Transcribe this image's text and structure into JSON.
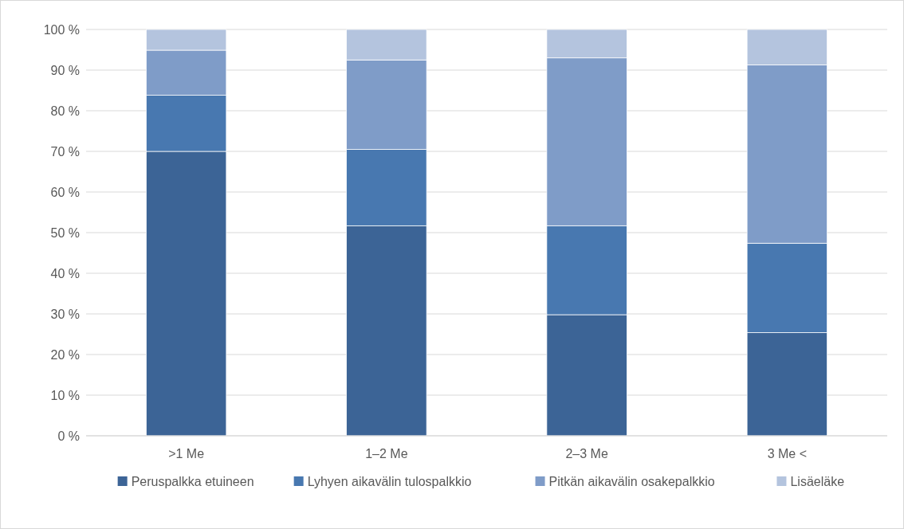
{
  "chart_data": {
    "type": "bar",
    "stacked": true,
    "categories": [
      ">1 Me",
      "1–2 Me",
      "2–3 Me",
      "3 Me <"
    ],
    "series": [
      {
        "name": "Peruspalkka etuineen",
        "color": "#3c6496",
        "values": [
          70,
          51.7,
          29.8,
          25.4
        ]
      },
      {
        "name": "Lyhyen aikavälin tulospalkkio",
        "color": "#4878b0",
        "values": [
          13.8,
          18.8,
          21.9,
          22.0
        ]
      },
      {
        "name": "Pitkän aikavälin osakepalkkio",
        "color": "#7f9cc8",
        "values": [
          11.1,
          22.0,
          41.3,
          43.9
        ]
      },
      {
        "name": "Lisäeläke",
        "color": "#b4c4de",
        "values": [
          5.1,
          7.5,
          7.0,
          8.7
        ]
      }
    ],
    "ylim": [
      0,
      100
    ],
    "yticks": [
      {
        "value": 0,
        "label": "0 %"
      },
      {
        "value": 10,
        "label": "10 %"
      },
      {
        "value": 20,
        "label": "20 %"
      },
      {
        "value": 30,
        "label": "30 %"
      },
      {
        "value": 40,
        "label": "40 %"
      },
      {
        "value": 50,
        "label": "50 %"
      },
      {
        "value": 60,
        "label": "60 %"
      },
      {
        "value": 70,
        "label": "70 %"
      },
      {
        "value": 80,
        "label": "80 %"
      },
      {
        "value": 90,
        "label": "90 %"
      },
      {
        "value": 100,
        "label": "100 %"
      }
    ],
    "grid": "y",
    "legend": "bottom"
  }
}
